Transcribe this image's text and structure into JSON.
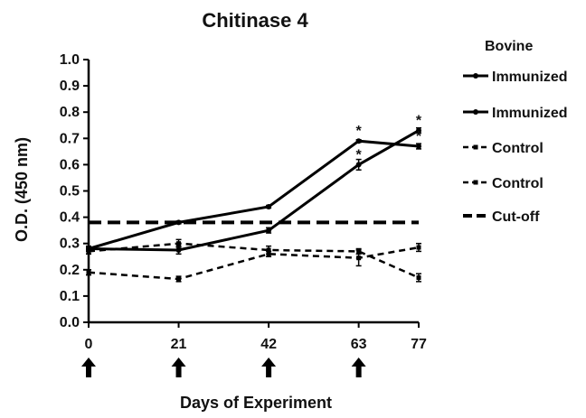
{
  "chart_data": {
    "type": "line",
    "title": "Chitinase 4",
    "xlabel": "Days of Experiment",
    "ylabel": "O.D. (450 nm)",
    "xlim": [
      0,
      77
    ],
    "ylim": [
      0,
      1.0
    ],
    "x_ticks": [
      0,
      21,
      42,
      63,
      77
    ],
    "y_ticks": [
      "0.0",
      "0.1",
      "0.2",
      "0.3",
      "0.4",
      "0.5",
      "0.6",
      "0.7",
      "0.8",
      "0.9",
      "1.0"
    ],
    "legend_title": "Bovine",
    "legend_position": "right",
    "grid": false,
    "series": [
      {
        "name": "Immunized",
        "style": "solid",
        "marker": "circle",
        "x": [
          0,
          21,
          42,
          63,
          77
        ],
        "y": [
          0.28,
          0.38,
          0.44,
          0.69,
          0.67
        ],
        "err": [
          0.005,
          0.005,
          0.005,
          0.005,
          0.01
        ]
      },
      {
        "name": "Immunized",
        "style": "solid",
        "marker": "circle",
        "x": [
          0,
          21,
          42,
          63,
          77
        ],
        "y": [
          0.28,
          0.275,
          0.35,
          0.6,
          0.73
        ],
        "err": [
          0.01,
          0.015,
          0.01,
          0.02,
          0.01
        ]
      },
      {
        "name": "Control",
        "style": "dashed",
        "marker": "square",
        "x": [
          0,
          21,
          42,
          63,
          77
        ],
        "y": [
          0.27,
          0.3,
          0.275,
          0.27,
          0.17
        ],
        "err": [
          0.01,
          0.015,
          0.015,
          0.01,
          0.015
        ]
      },
      {
        "name": "Control",
        "style": "dashed",
        "marker": "square",
        "x": [
          0,
          21,
          42,
          63,
          77
        ],
        "y": [
          0.19,
          0.165,
          0.26,
          0.245,
          0.285
        ],
        "err": [
          0.01,
          0.01,
          0.01,
          0.03,
          0.015
        ]
      },
      {
        "name": "Cut-off",
        "style": "long-dash",
        "marker": "none",
        "x": [
          0,
          77
        ],
        "y": [
          0.38,
          0.38
        ]
      }
    ],
    "annotations": [
      {
        "text": "*",
        "x": 63,
        "y": 0.69
      },
      {
        "text": "*",
        "x": 63,
        "y": 0.6
      },
      {
        "text": "*",
        "x": 77,
        "y": 0.73
      },
      {
        "text": "*",
        "x": 77,
        "y": 0.67
      }
    ],
    "arrow_days": [
      0,
      21,
      42,
      63
    ]
  }
}
